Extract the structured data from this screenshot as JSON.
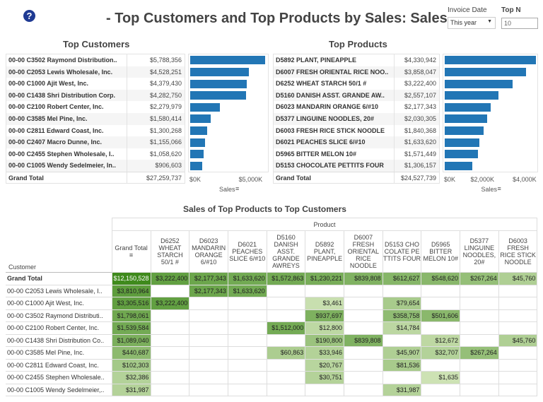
{
  "header": {
    "title": "- Top Customers and Top Products by Sales: Sales",
    "invoice_date_label": "Invoice Date",
    "invoice_date_value": "This year",
    "topn_label": "Top N",
    "topn_value": "10"
  },
  "top_customers": {
    "title": "Top Customers",
    "rows": [
      {
        "name": "00-00  C3502  Raymond Distribution..",
        "sales": "$5,788,356",
        "value": 5788356
      },
      {
        "name": "00-00  C2053  Lewis Wholesale, Inc.",
        "sales": "$4,528,251",
        "value": 4528251
      },
      {
        "name": "00-00  C1000  Ajit West, Inc.",
        "sales": "$4,379,430",
        "value": 4379430
      },
      {
        "name": "00-00  C1438  Shri Distribution Corp.",
        "sales": "$4,282,750",
        "value": 4282750
      },
      {
        "name": "00-00  C2100  Robert Center, Inc.",
        "sales": "$2,279,979",
        "value": 2279979
      },
      {
        "name": "00-00  C3585  Mel Pine, Inc.",
        "sales": "$1,580,414",
        "value": 1580414
      },
      {
        "name": "00-00  C2811  Edward Coast, Inc.",
        "sales": "$1,300,268",
        "value": 1300268
      },
      {
        "name": "00-00  C2407  Macro Dunne, Inc.",
        "sales": "$1,155,066",
        "value": 1155066
      },
      {
        "name": "00-00  C2455  Stephen Wholesale, I..",
        "sales": "$1,058,620",
        "value": 1058620
      },
      {
        "name": "00-00  C1005  Wendy Sedelmeier, In..",
        "sales": "$906,603",
        "value": 906603
      }
    ],
    "grand_total_label": "Grand Total",
    "grand_total": "$27,259,737",
    "axis_ticks": [
      "$0K",
      "$5,000K"
    ],
    "axis_max": 6000000,
    "axis_label": "Sales"
  },
  "top_products": {
    "title": "Top Products",
    "rows": [
      {
        "name": "D5892  PLANT, PINEAPPLE",
        "sales": "$4,330,942",
        "value": 4330942
      },
      {
        "name": "D6007  FRESH ORIENTAL RICE NOO..",
        "sales": "$3,858,047",
        "value": 3858047
      },
      {
        "name": "D6252  WHEAT STARCH 50/1 #",
        "sales": "$3,222,400",
        "value": 3222400
      },
      {
        "name": "D5160  DANISH ASST. GRANDE AW..",
        "sales": "$2,557,107",
        "value": 2557107
      },
      {
        "name": "D6023  MANDARIN ORANGE 6/#10",
        "sales": "$2,177,343",
        "value": 2177343
      },
      {
        "name": "D5377  LINGUINE NOODLES, 20#",
        "sales": "$2,030,305",
        "value": 2030305
      },
      {
        "name": "D6003  FRESH RICE STICK NOODLE",
        "sales": "$1,840,368",
        "value": 1840368
      },
      {
        "name": "D6021  PEACHES SLICE 6/#10",
        "sales": "$1,633,620",
        "value": 1633620
      },
      {
        "name": "D5965  BITTER MELON 10#",
        "sales": "$1,571,449",
        "value": 1571449
      },
      {
        "name": "D5153  CHOCOLATE PETTITS FOUR",
        "sales": "$1,306,157",
        "value": 1306157
      }
    ],
    "grand_total_label": "Grand Total",
    "grand_total": "$24,527,739",
    "axis_ticks": [
      "$0K",
      "$2,000K",
      "$4,000K"
    ],
    "axis_max": 4400000,
    "axis_label": "Sales"
  },
  "matrix": {
    "title": "Sales of Top Products to Top Customers",
    "product_header": "Product",
    "customer_header": "Customer",
    "columns": [
      "Grand Total",
      "D6252 WHEAT STARCH 50/1 #",
      "D6023 MANDARIN ORANGE 6/#10",
      "D6021 PEACHES SLICE 6/#10",
      "D5160 DANISH ASST. GRANDE AWREYS",
      "D5892 PLANT, PINEAPPLE",
      "D6007 FRESH ORIENTAL RICE NOODLE",
      "D5153 CHO COLATE PE TTITS FOUR",
      "D5965 BITTER MELON 10#",
      "D5377 LINGUINE NOODLES, 20#",
      "D6003 FRESH RICE STICK NOODLE"
    ],
    "rows": [
      {
        "label": "Grand Total",
        "cells": [
          "$12,150,528",
          "$3,222,400",
          "$2,177,343",
          "$1,633,620",
          "$1,572,863",
          "$1,230,221",
          "$839,808",
          "$612,627",
          "$548,620",
          "$267,264",
          "$45,760"
        ]
      },
      {
        "label": "00-00  C2053  Lewis Wholesale, I..",
        "cells": [
          "$3,810,964",
          "",
          "$2,177,343",
          "$1,633,620",
          "",
          "",
          "",
          "",
          "",
          "",
          ""
        ]
      },
      {
        "label": "00-00  C1000  Ajit West, Inc.",
        "cells": [
          "$3,305,516",
          "$3,222,400",
          "",
          "",
          "",
          "$3,461",
          "",
          "$79,654",
          "",
          "",
          ""
        ]
      },
      {
        "label": "00-00  C3502  Raymond Distributi..",
        "cells": [
          "$1,798,061",
          "",
          "",
          "",
          "",
          "$937,697",
          "",
          "$358,758",
          "$501,606",
          "",
          ""
        ]
      },
      {
        "label": "00-00  C2100  Robert Center, Inc.",
        "cells": [
          "$1,539,584",
          "",
          "",
          "",
          "$1,512,000",
          "$12,800",
          "",
          "$14,784",
          "",
          "",
          ""
        ]
      },
      {
        "label": "00-00  C1438  Shri Distribution Co..",
        "cells": [
          "$1,089,040",
          "",
          "",
          "",
          "",
          "$190,800",
          "$839,808",
          "",
          "$12,672",
          "",
          "$45,760"
        ]
      },
      {
        "label": "00-00  C3585  Mel Pine, Inc.",
        "cells": [
          "$440,687",
          "",
          "",
          "",
          "$60,863",
          "$33,946",
          "",
          "$45,907",
          "$32,707",
          "$267,264",
          ""
        ]
      },
      {
        "label": "00-00  C2811  Edward Coast, Inc.",
        "cells": [
          "$102,303",
          "",
          "",
          "",
          "",
          "$20,767",
          "",
          "$81,536",
          "",
          "",
          ""
        ]
      },
      {
        "label": "00-00  C2455  Stephen Wholesale..",
        "cells": [
          "$32,386",
          "",
          "",
          "",
          "",
          "$30,751",
          "",
          "",
          "$1,635",
          "",
          ""
        ]
      },
      {
        "label": "00-00  C1005  Wendy Sedelmeier,..",
        "cells": [
          "$31,987",
          "",
          "",
          "",
          "",
          "",
          "",
          "$31,987",
          "",
          "",
          ""
        ]
      }
    ]
  },
  "colors": {
    "bar": "#2276b5",
    "heat_dark": "#3f8a1c",
    "heat_light": "#dcebc4"
  }
}
